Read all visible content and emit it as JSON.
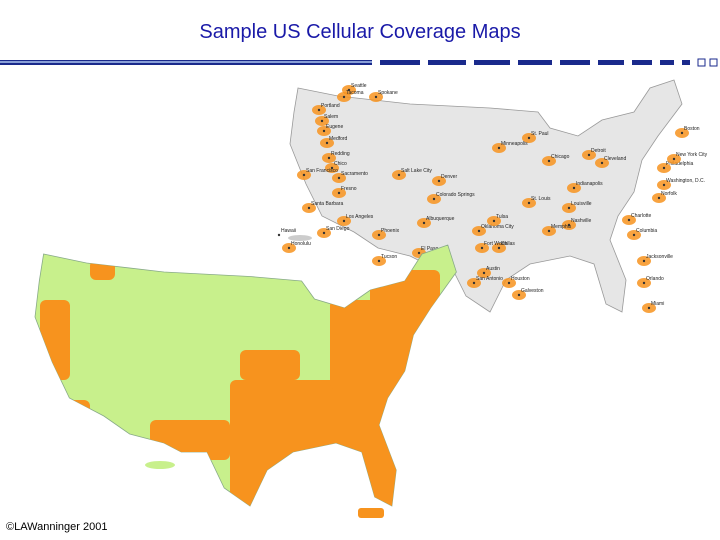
{
  "header": {
    "title": "Sample US Cellular Coverage Maps"
  },
  "top_map": {
    "cities": [
      "Seattle",
      "Tacoma",
      "Spokane",
      "Portland",
      "Salem",
      "Eugene",
      "Medford",
      "Redding",
      "Chico",
      "Sacramento",
      "San Francisco",
      "Fresno",
      "Santa Barbara",
      "Los Angeles",
      "San Diego",
      "Hawaii",
      "Honolulu",
      "Salt Lake City",
      "Denver",
      "Colorado Springs",
      "Albuquerque",
      "Phoenix",
      "Tucson",
      "El Paso",
      "St. Paul",
      "Minneapolis",
      "Chicago",
      "Detroit",
      "Cleveland",
      "Indianapolis",
      "St. Louis",
      "Louisville",
      "Nashville",
      "Memphis",
      "Oklahoma City",
      "Tulsa",
      "Dallas",
      "Fort Worth",
      "Austin",
      "San Antonio",
      "Houston",
      "Galveston",
      "Charlotte",
      "Columbia",
      "Norfolk",
      "Washington, D.C.",
      "Philadelphia",
      "New York City",
      "Boston",
      "Orlando",
      "Miami",
      "Jacksonville"
    ]
  },
  "footer": {
    "copyright": "©LAWanninger 2001"
  }
}
